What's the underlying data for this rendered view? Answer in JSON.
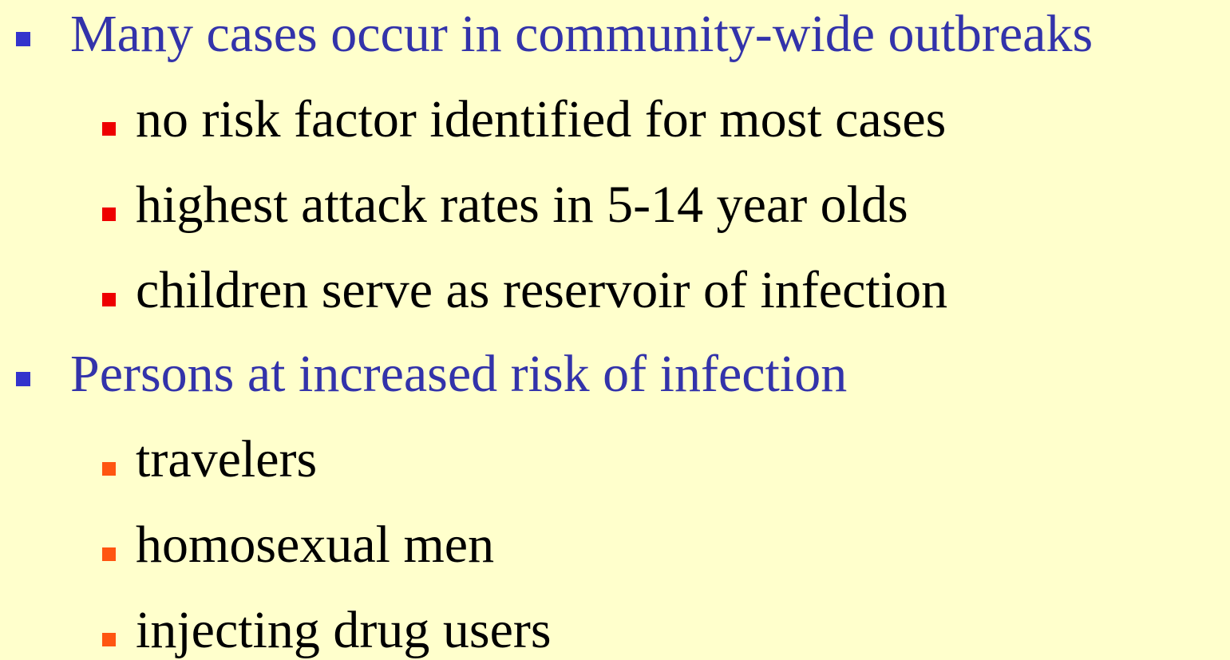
{
  "bullets": [
    {
      "text": "Many cases occur in community-wide outbreaks",
      "subitems": [
        "no risk factor identified for most cases",
        "highest attack rates in 5-14 year olds",
        "children serve as reservoir of infection"
      ]
    },
    {
      "text": "Persons at increased risk of infection",
      "subitems": [
        "travelers",
        "homosexual men",
        "injecting drug users"
      ]
    }
  ]
}
